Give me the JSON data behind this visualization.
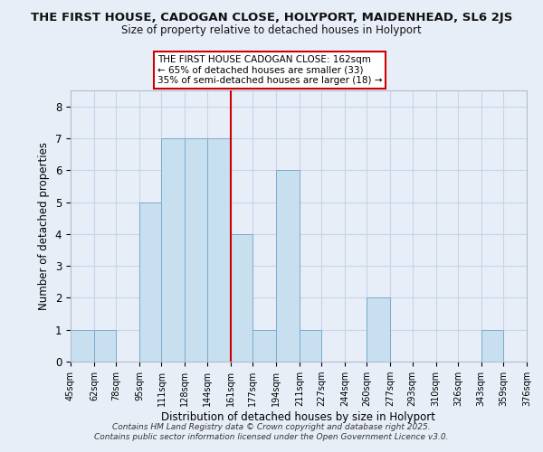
{
  "title": "THE FIRST HOUSE, CADOGAN CLOSE, HOLYPORT, MAIDENHEAD, SL6 2JS",
  "subtitle": "Size of property relative to detached houses in Holyport",
  "xlabel": "Distribution of detached houses by size in Holyport",
  "ylabel": "Number of detached properties",
  "bin_edges": [
    45,
    62,
    78,
    95,
    111,
    128,
    144,
    161,
    177,
    194,
    211,
    227,
    244,
    260,
    277,
    293,
    310,
    326,
    343,
    359,
    376
  ],
  "counts": [
    1,
    1,
    0,
    5,
    7,
    7,
    7,
    4,
    1,
    6,
    1,
    0,
    0,
    2,
    0,
    0,
    0,
    0,
    1,
    0
  ],
  "bar_color": "#c8dff0",
  "bar_edge_color": "#7aaccc",
  "reference_line_x": 161,
  "reference_line_color": "#cc0000",
  "annotation_box_edge_color": "#cc0000",
  "annotation_lines": [
    "THE FIRST HOUSE CADOGAN CLOSE: 162sqm",
    "← 65% of detached houses are smaller (33)",
    "35% of semi-detached houses are larger (18) →"
  ],
  "tick_labels": [
    "45sqm",
    "62sqm",
    "78sqm",
    "95sqm",
    "111sqm",
    "128sqm",
    "144sqm",
    "161sqm",
    "177sqm",
    "194sqm",
    "211sqm",
    "227sqm",
    "244sqm",
    "260sqm",
    "277sqm",
    "293sqm",
    "310sqm",
    "326sqm",
    "343sqm",
    "359sqm",
    "376sqm"
  ],
  "ylim": [
    0,
    8.5
  ],
  "yticks": [
    0,
    1,
    2,
    3,
    4,
    5,
    6,
    7,
    8
  ],
  "bg_color": "#e8eef8",
  "grid_color": "#c8d4e8",
  "footer_line1": "Contains HM Land Registry data © Crown copyright and database right 2025.",
  "footer_line2": "Contains public sector information licensed under the Open Government Licence v3.0."
}
